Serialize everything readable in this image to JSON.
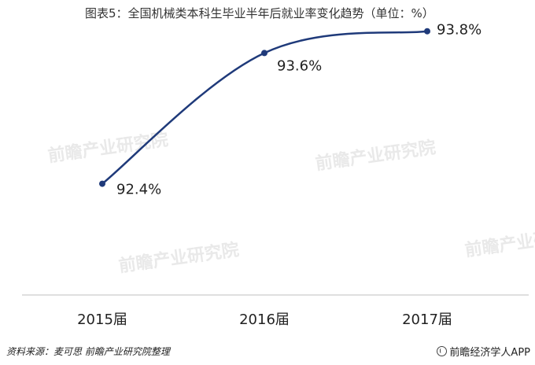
{
  "title": "图表5：全国机械类本科生毕业半年后就业率变化趋势（单位：%）",
  "source": {
    "label": "资料来源：",
    "text": "麦可思 前瞻产业研究院整理"
  },
  "brand": "前瞻经济学人APP",
  "watermark_text": "前瞻产业研究院",
  "colors": {
    "line": "#1f3a7a",
    "axis": "#bfbfbf",
    "text": "#222222"
  },
  "chart_data": {
    "type": "line",
    "categories": [
      "2015届",
      "2016届",
      "2017届"
    ],
    "series": [
      {
        "values": [
          92.4,
          93.6,
          93.8
        ]
      }
    ],
    "data_labels": [
      "92.4%",
      "93.6%",
      "93.8%"
    ],
    "title": "图表5：全国机械类本科生毕业半年后就业率变化趋势（单位：%）",
    "xlabel": "",
    "ylabel": "",
    "grid": false,
    "legend": "none"
  }
}
